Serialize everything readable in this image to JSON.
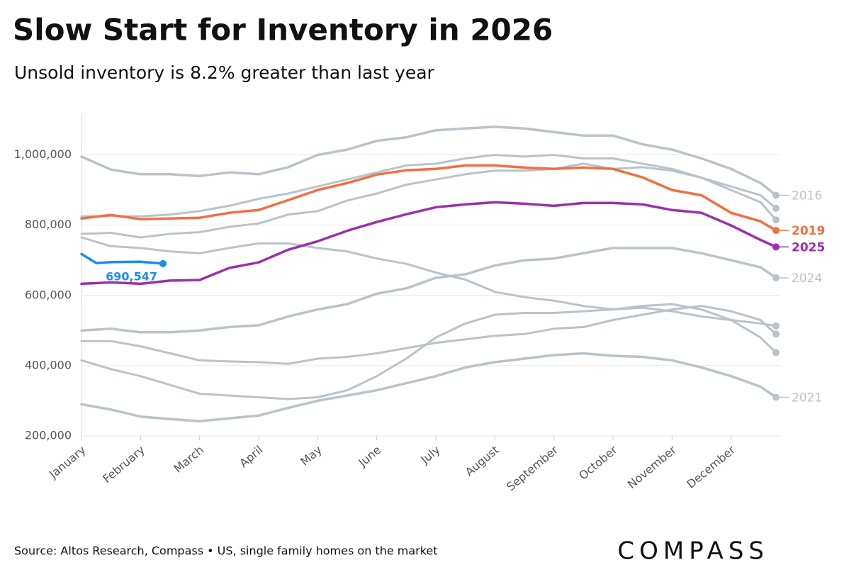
{
  "chart_data": {
    "type": "line",
    "title": "Slow Start for Inventory in 2026",
    "subtitle": "Unsold inventory is 8.2% greater than last year",
    "source": "Source: Altos Research, Compass • US, single family homes on the market",
    "logo": "COMPASS",
    "x": [
      0,
      0.5,
      1,
      1.5,
      2,
      2.5,
      3,
      3.5,
      4,
      4.5,
      5,
      5.5,
      6,
      6.5,
      7,
      7.5,
      8,
      8.5,
      9,
      9.5,
      10,
      10.5,
      11,
      11.5,
      11.76
    ],
    "xlim": [
      0,
      11.76
    ],
    "xticks": [
      {
        "value": 0,
        "label": "January"
      },
      {
        "value": 1,
        "label": "February"
      },
      {
        "value": 2,
        "label": "March"
      },
      {
        "value": 3,
        "label": "April"
      },
      {
        "value": 4,
        "label": "May"
      },
      {
        "value": 5,
        "label": "June"
      },
      {
        "value": 6,
        "label": "July"
      },
      {
        "value": 7,
        "label": "August"
      },
      {
        "value": 8,
        "label": "September"
      },
      {
        "value": 9,
        "label": "October"
      },
      {
        "value": 10,
        "label": "November"
      },
      {
        "value": 11,
        "label": "December"
      }
    ],
    "ylim": [
      200000,
      1110000
    ],
    "yticks": [
      {
        "value": 200000,
        "label": "200,000"
      },
      {
        "value": 400000,
        "label": "400,000"
      },
      {
        "value": 600000,
        "label": "600,000"
      },
      {
        "value": 800000,
        "label": "800,000"
      },
      {
        "value": 1000000,
        "label": "1,000,000"
      }
    ],
    "grid": true,
    "series": [
      {
        "name": "2016",
        "color": "#b9c3ca",
        "values": [
          995000,
          958000,
          945000,
          945000,
          940000,
          950000,
          945000,
          965000,
          1000000,
          1015000,
          1040000,
          1050000,
          1070000,
          1075000,
          1080000,
          1075000,
          1065000,
          1055000,
          1055000,
          1030000,
          1015000,
          990000,
          960000,
          920000,
          885000
        ]
      },
      {
        "color": "#b9c3ca",
        "values": [
          825000,
          826000,
          825000,
          830000,
          840000,
          855000,
          875000,
          890000,
          910000,
          930000,
          950000,
          970000,
          975000,
          990000,
          1000000,
          995000,
          1000000,
          990000,
          990000,
          975000,
          960000,
          935000,
          910000,
          885000,
          848000
        ]
      },
      {
        "color": "#b9c3ca",
        "values": [
          775000,
          778000,
          765000,
          775000,
          780000,
          795000,
          805000,
          830000,
          840000,
          870000,
          890000,
          915000,
          930000,
          945000,
          955000,
          955000,
          960000,
          975000,
          960000,
          965000,
          955000,
          935000,
          900000,
          865000,
          815000
        ]
      },
      {
        "name": "2024",
        "color": "#b9c3ca",
        "values": [
          500000,
          505000,
          495000,
          495000,
          500000,
          510000,
          515000,
          540000,
          560000,
          575000,
          605000,
          620000,
          650000,
          660000,
          685000,
          700000,
          705000,
          720000,
          735000,
          735000,
          735000,
          720000,
          700000,
          680000,
          650000
        ]
      },
      {
        "color": "#b9c3ca",
        "values": [
          765000,
          740000,
          735000,
          725000,
          720000,
          735000,
          748000,
          748000,
          735000,
          725000,
          705000,
          690000,
          665000,
          645000,
          610000,
          595000,
          585000,
          570000,
          560000,
          565000,
          555000,
          540000,
          530000,
          520000,
          513000
        ]
      },
      {
        "color": "#b9c3ca",
        "values": [
          470000,
          470000,
          455000,
          435000,
          415000,
          412000,
          410000,
          405000,
          420000,
          425000,
          435000,
          450000,
          465000,
          475000,
          485000,
          490000,
          505000,
          510000,
          530000,
          545000,
          560000,
          570000,
          555000,
          530000,
          490000
        ]
      },
      {
        "color": "#b9c3ca",
        "values": [
          415000,
          390000,
          370000,
          345000,
          320000,
          315000,
          310000,
          305000,
          310000,
          330000,
          370000,
          420000,
          480000,
          520000,
          545000,
          550000,
          550000,
          555000,
          560000,
          570000,
          575000,
          560000,
          530000,
          480000,
          437000
        ]
      },
      {
        "name": "2021",
        "color": "#b9c3ca",
        "values": [
          290000,
          275000,
          255000,
          248000,
          242000,
          250000,
          258000,
          280000,
          300000,
          315000,
          330000,
          350000,
          370000,
          395000,
          410000,
          420000,
          430000,
          435000,
          428000,
          425000,
          415000,
          395000,
          370000,
          340000,
          310000
        ]
      },
      {
        "name": "2019",
        "color": "#f26f3f",
        "values": [
          819000,
          829000,
          817000,
          819000,
          821000,
          835000,
          843000,
          871000,
          900000,
          920000,
          944000,
          956000,
          960000,
          970000,
          970000,
          964000,
          960000,
          964000,
          960000,
          936000,
          900000,
          885000,
          835000,
          811000,
          785000
        ]
      },
      {
        "name": "2025",
        "color": "#9b2fae",
        "values": [
          633000,
          637000,
          633000,
          642000,
          644000,
          678000,
          694000,
          730000,
          754000,
          784000,
          809000,
          831000,
          851000,
          859000,
          865000,
          861000,
          855000,
          863000,
          863000,
          859000,
          843000,
          835000,
          799000,
          758000,
          738000
        ]
      },
      {
        "color": "#1a8cf0",
        "x": [
          0,
          0.25,
          0.5,
          1,
          1.38
        ],
        "values": [
          718000,
          692000,
          695000,
          696000,
          690547
        ],
        "value_labels": [
          null,
          null,
          null,
          null,
          "690,547"
        ]
      }
    ]
  }
}
